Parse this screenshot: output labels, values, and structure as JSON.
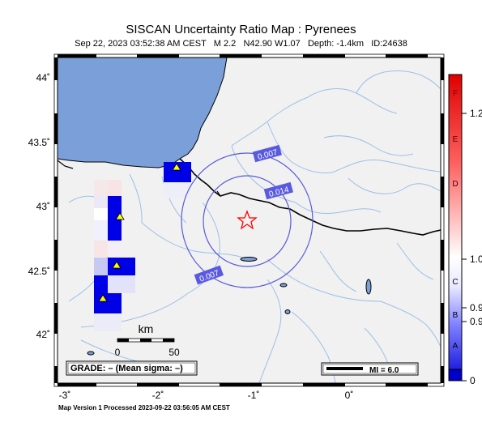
{
  "header": {
    "title": "SISCAN Uncertainty Ratio Map : Pyrenees",
    "subtitle": "Sep 22, 2023 03:52:38 AM CEST   M 2.2   N42.90 W1.07   Depth: -1.4km   ID:24638"
  },
  "axes": {
    "lat_ticks": [
      "44˚",
      "43.5˚",
      "43˚",
      "42.5˚",
      "42˚"
    ],
    "lon_ticks": [
      "-3˚",
      "-2˚",
      "-1˚",
      "0˚"
    ]
  },
  "contours": [
    "0.007",
    "0.014",
    "0.007"
  ],
  "scale_bar": {
    "unit": "km",
    "start": "0",
    "end": "50"
  },
  "grade_box": "GRADE: – (Mean sigma: –)",
  "mi_box": "MI = 6.0",
  "colorbar": {
    "letters": [
      "F",
      "E",
      "D",
      "C",
      "B",
      "A"
    ],
    "values": [
      "1.2",
      "1.0",
      "0.9",
      "0.9",
      "0"
    ],
    "colors": {
      "top": "#e00000",
      "mid": "#ffffff",
      "low": "#5050ff",
      "bottom": "#0000c8"
    }
  },
  "map_colors": {
    "sea": "#7b9fd9",
    "land": "#f1f1f1",
    "river": "#9cbfe8",
    "contour": "#5a5ad8",
    "station": "#ffff00",
    "epicenter": "#ff0000"
  },
  "footer": "Map Version 1 Processed 2023-09-22 03:56:05 AM CEST"
}
